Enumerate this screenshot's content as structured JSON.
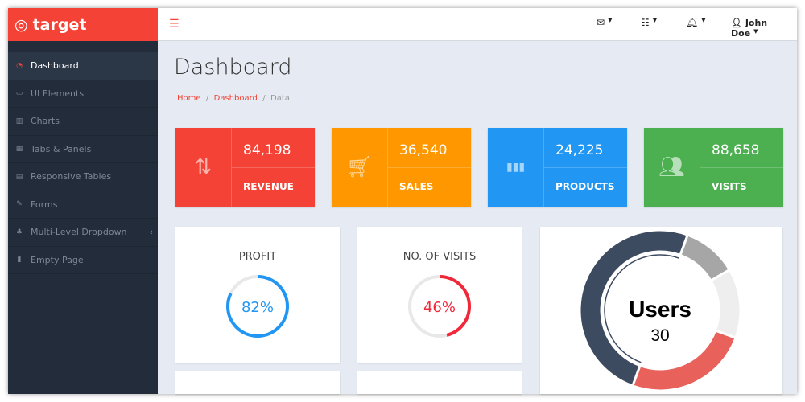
{
  "brand": {
    "name": "target"
  },
  "topbar": {
    "user": "John Doe",
    "icons": [
      "envelope-icon",
      "tasks-icon",
      "bell-icon",
      "user-icon"
    ]
  },
  "sidebar": {
    "items": [
      {
        "label": "Dashboard",
        "icon": "dashboard-icon",
        "active": true
      },
      {
        "label": "UI Elements",
        "icon": "desktop-icon"
      },
      {
        "label": "Charts",
        "icon": "bar-chart-icon"
      },
      {
        "label": "Tabs & Panels",
        "icon": "qrcode-icon"
      },
      {
        "label": "Responsive Tables",
        "icon": "table-icon"
      },
      {
        "label": "Forms",
        "icon": "edit-icon"
      },
      {
        "label": "Multi-Level Dropdown",
        "icon": "sitemap-icon"
      },
      {
        "label": "Empty Page",
        "icon": "file-icon"
      }
    ]
  },
  "page": {
    "title": "Dashboard",
    "breadcrumb": [
      "Home",
      "Dashboard",
      "Data"
    ]
  },
  "stats": [
    {
      "value": "84,198",
      "label": "REVENUE",
      "color": "#f44336",
      "icon": "sort-arrows-icon"
    },
    {
      "value": "36,540",
      "label": "SALES",
      "color": "#ff9800",
      "icon": "cart-icon"
    },
    {
      "value": "24,225",
      "label": "PRODUCTS",
      "color": "#2196f3",
      "icon": "bar-chart-icon"
    },
    {
      "value": "88,658",
      "label": "VISITS",
      "color": "#4caf50",
      "icon": "users-icon"
    }
  ],
  "gauges": [
    {
      "title": "PROFIT",
      "value": "82%",
      "percent": 82,
      "color": "#2196f3"
    },
    {
      "title": "NO. OF VISITS",
      "value": "46%",
      "percent": 46,
      "color": "#f0283a"
    }
  ],
  "users_chart": {
    "title": "Users",
    "value": "30",
    "segments": [
      {
        "percent": 50,
        "color": "#3d4b60"
      },
      {
        "percent": 11,
        "color": "#a6a6a6"
      },
      {
        "percent": 14,
        "color": "#eeeeee"
      },
      {
        "percent": 25,
        "color": "#e8615b"
      }
    ]
  }
}
